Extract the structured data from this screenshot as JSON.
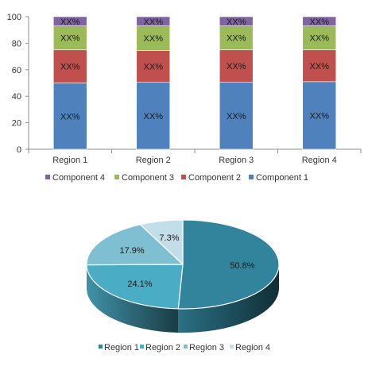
{
  "chart_data": [
    {
      "type": "bar",
      "stacked": true,
      "categories": [
        "Region 1",
        "Region 2",
        "Region 3",
        "Region 4"
      ],
      "series": [
        {
          "name": "Component 1",
          "color": "#4f81bd",
          "values": [
            50,
            50.5,
            50.5,
            51
          ],
          "labels": [
            "XX%",
            "XX%",
            "XX%",
            "XX%"
          ]
        },
        {
          "name": "Component 2",
          "color": "#c0504d",
          "values": [
            25,
            24,
            24.5,
            24
          ],
          "labels": [
            "XX%",
            "XX%",
            "XX%",
            "XX%"
          ]
        },
        {
          "name": "Component 3",
          "color": "#9bbb59",
          "values": [
            18,
            18.5,
            18,
            18
          ],
          "labels": [
            "XX%",
            "XX%",
            "XX%",
            "XX%"
          ]
        },
        {
          "name": "Component 4",
          "color": "#8064a2",
          "values": [
            7,
            7,
            7,
            7
          ],
          "labels": [
            "XX%",
            "XX%",
            "XX%",
            "XX%"
          ]
        }
      ],
      "ylim": [
        0,
        100
      ],
      "yticks": [
        0,
        20,
        40,
        60,
        80,
        100
      ],
      "grid": false,
      "legend": {
        "position": "bottom",
        "order": [
          "Component 4",
          "Component 3",
          "Component 2",
          "Component 1"
        ]
      },
      "title": "",
      "xlabel": "",
      "ylabel": ""
    },
    {
      "type": "pie",
      "style": "3d",
      "slices": [
        {
          "name": "Region 1",
          "value": 50.8,
          "label": "50.8%",
          "color": "#31849b"
        },
        {
          "name": "Region 2",
          "value": 24.1,
          "label": "24.1%",
          "color": "#4bacc6"
        },
        {
          "name": "Region 3",
          "value": 17.9,
          "label": "17.9%",
          "color": "#7fbfd2"
        },
        {
          "name": "Region 4",
          "value": 7.3,
          "label": "7.3%",
          "color": "#c2dfe9"
        }
      ],
      "legend": {
        "position": "bottom"
      },
      "title": ""
    }
  ]
}
